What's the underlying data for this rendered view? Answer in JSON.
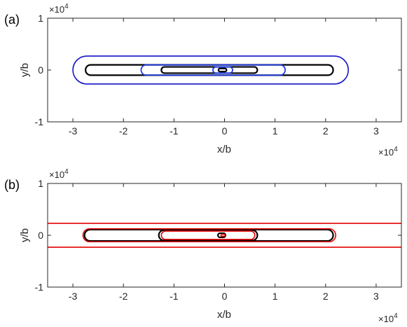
{
  "chart_data": [
    {
      "type": "line",
      "panel_label": "(a)",
      "xlabel": "x/b",
      "ylabel": "y/b",
      "x_exponent_label": "×10",
      "x_exponent_power": "4",
      "y_exponent_label": "×10",
      "y_exponent_power": "4",
      "xlim": [
        -35000,
        35000
      ],
      "ylim": [
        -10000,
        10000
      ],
      "xticks": [
        -30000,
        -20000,
        -10000,
        0,
        10000,
        20000,
        30000
      ],
      "xtick_labels": [
        "-3",
        "-2",
        "-1",
        "0",
        "1",
        "2",
        "3"
      ],
      "yticks": [
        -10000,
        0,
        10000
      ],
      "ytick_labels": [
        "-1",
        "0",
        "1"
      ],
      "grid": false,
      "series": [
        {
          "color": "#1414c8",
          "x1": -30000,
          "x2": 24500,
          "half_height": 2700,
          "stroke": 1.6
        },
        {
          "color": "#000000",
          "x1": -27500,
          "x2": 21500,
          "half_height": 1000,
          "stroke": 2.2
        },
        {
          "color": "#1e3ce6",
          "x1": -16500,
          "x2": 12000,
          "half_height": 1000,
          "stroke": 1.8
        },
        {
          "color": "#000000",
          "x1": -12500,
          "x2": 6500,
          "half_height": 600,
          "stroke": 2.2
        },
        {
          "color": "#1e3ce6",
          "x1": -2300,
          "x2": 1600,
          "half_height": 600,
          "stroke": 1.8
        },
        {
          "color": "#000000",
          "x1": -1200,
          "x2": 400,
          "half_height": 300,
          "stroke": 2.2
        }
      ]
    },
    {
      "type": "line",
      "panel_label": "(b)",
      "xlabel": "x/b",
      "ylabel": "y/b",
      "x_exponent_label": "×10",
      "x_exponent_power": "4",
      "y_exponent_label": "×10",
      "y_exponent_power": "4",
      "xlim": [
        -35000,
        35000
      ],
      "ylim": [
        -10000,
        10000
      ],
      "xticks": [
        -30000,
        -20000,
        -10000,
        0,
        10000,
        20000,
        30000
      ],
      "xtick_labels": [
        "-3",
        "-2",
        "-1",
        "0",
        "1",
        "2",
        "3"
      ],
      "yticks": [
        -10000,
        0,
        10000
      ],
      "ytick_labels": [
        "-1",
        "0",
        "1"
      ],
      "grid": false,
      "series": [
        {
          "color": "#e60000",
          "x1": -44000,
          "x2": 44000,
          "half_height": 2300,
          "stroke": 1.6
        },
        {
          "color": "#000000",
          "x1": -27700,
          "x2": 21500,
          "half_height": 1100,
          "stroke": 2.2
        },
        {
          "color": "#e60000",
          "x1": -28000,
          "x2": 22000,
          "half_height": 1250,
          "stroke": 1.6
        },
        {
          "color": "#000000",
          "x1": -13000,
          "x2": 6500,
          "half_height": 1000,
          "stroke": 2.2
        },
        {
          "color": "#e60000",
          "x1": -12500,
          "x2": 6000,
          "half_height": 800,
          "stroke": 1.6
        },
        {
          "color": "#000000",
          "x1": -1300,
          "x2": 200,
          "half_height": 400,
          "stroke": 2.2
        },
        {
          "color": "#e60000",
          "x1": -700,
          "x2": 100,
          "half_height": 200,
          "stroke": 1.6
        }
      ]
    }
  ]
}
